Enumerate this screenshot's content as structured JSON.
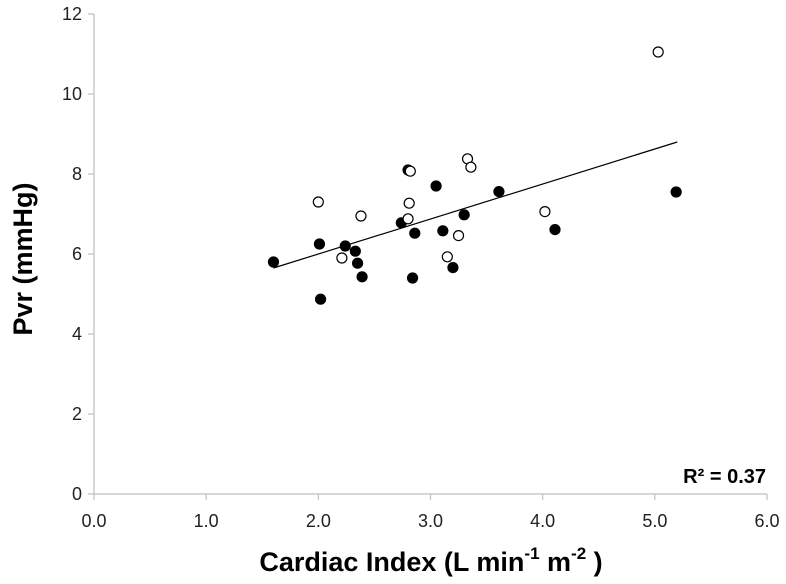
{
  "chart_data": {
    "type": "scatter",
    "title": "",
    "xlabel": {
      "main": "Cardiac Index (L min",
      "sup1": "-1",
      "mid": " m",
      "sup2": "-2",
      "end": " )"
    },
    "ylabel": "Pvr (mmHg)",
    "xlim": [
      0,
      6
    ],
    "ylim": [
      0,
      12
    ],
    "x_ticks": [
      "0.0",
      "1.0",
      "2.0",
      "3.0",
      "4.0",
      "5.0",
      "6.0"
    ],
    "y_ticks": [
      "0",
      "2",
      "4",
      "6",
      "8",
      "10",
      "12"
    ],
    "grid": false,
    "annotation": "R² = 0.37",
    "trendline": {
      "x": [
        1.6,
        5.2
      ],
      "y": [
        5.65,
        8.8
      ]
    },
    "series": [
      {
        "marker": "filled",
        "color": "#000000",
        "points": [
          [
            1.6,
            5.8
          ],
          [
            2.01,
            6.25
          ],
          [
            2.02,
            4.87
          ],
          [
            2.24,
            6.2
          ],
          [
            2.33,
            6.07
          ],
          [
            2.35,
            5.77
          ],
          [
            2.39,
            5.43
          ],
          [
            2.74,
            6.78
          ],
          [
            2.8,
            8.1
          ],
          [
            2.84,
            5.4
          ],
          [
            2.86,
            6.52
          ],
          [
            3.05,
            7.7
          ],
          [
            3.11,
            6.58
          ],
          [
            3.2,
            5.66
          ],
          [
            3.3,
            6.98
          ],
          [
            3.61,
            7.56
          ],
          [
            4.11,
            6.61
          ],
          [
            5.19,
            7.55
          ]
        ]
      },
      {
        "marker": "open",
        "color": "#000000",
        "points": [
          [
            2.0,
            7.3
          ],
          [
            2.21,
            5.9
          ],
          [
            2.38,
            6.95
          ],
          [
            2.81,
            7.27
          ],
          [
            2.8,
            6.88
          ],
          [
            2.82,
            8.07
          ],
          [
            3.15,
            5.93
          ],
          [
            3.25,
            6.46
          ],
          [
            3.33,
            8.38
          ],
          [
            3.36,
            8.17
          ],
          [
            4.02,
            7.06
          ],
          [
            5.03,
            11.05
          ]
        ]
      }
    ]
  }
}
